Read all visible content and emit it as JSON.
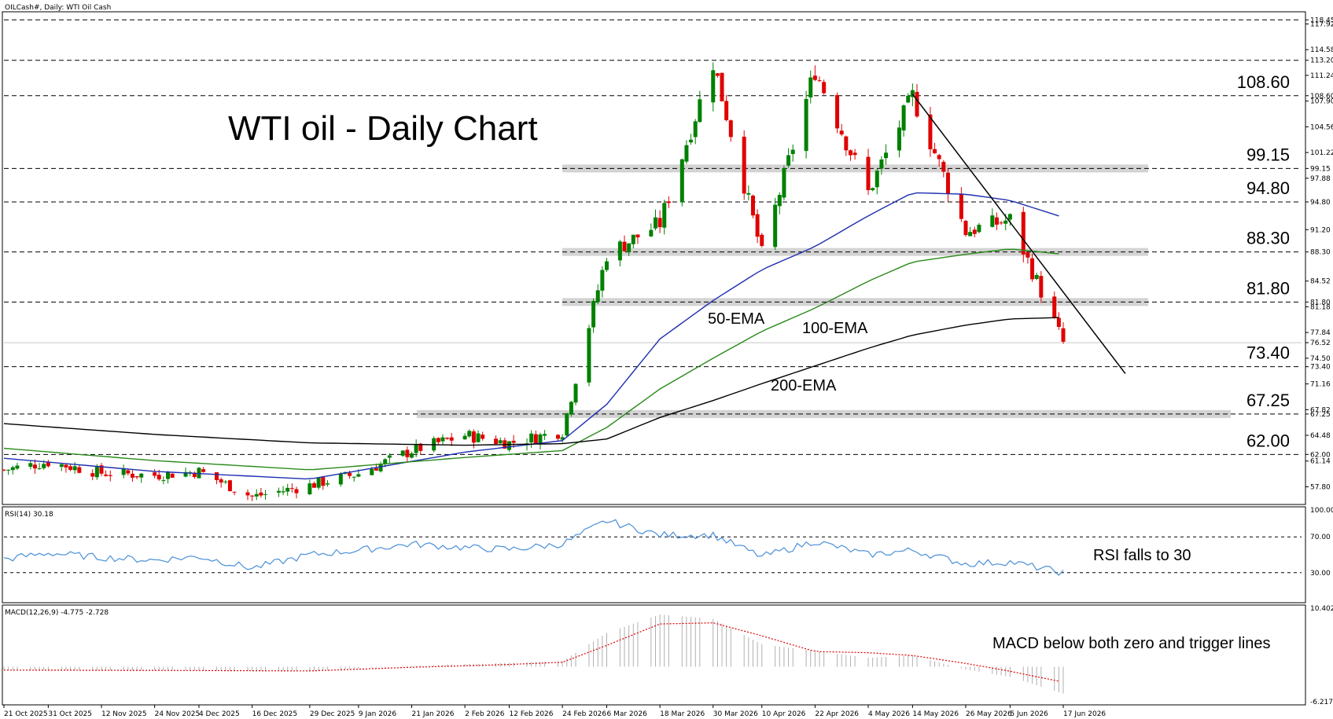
{
  "header": {
    "symbol_line": "OILCash#, Daily: WTI Oil Cash",
    "rsi_line": "RSI(14) 30.18",
    "macd_line": "MACD(12,26,9) -4.775 -2.728"
  },
  "annotations": {
    "title": "WTI oil - Daily Chart",
    "ema50": "50-EMA",
    "ema100": "100-EMA",
    "ema200": "200-EMA",
    "rsi_note": "RSI falls to 30",
    "macd_note": "MACD below both zero and trigger lines"
  },
  "colors": {
    "bull": "#008000",
    "bear": "#e00000",
    "ema50": "#1f2fb0",
    "ema100": "#2a8a1a",
    "ema200": "#000000",
    "rsi": "#4a8fd8",
    "macd_hist": "#b0b0b0",
    "macd_signal": "#e00000",
    "zone": "#d3d3d3"
  },
  "chart_data": [
    {
      "type": "candlestick",
      "title": "WTI oil - Daily Chart",
      "ylim": [
        55.5,
        119.5
      ],
      "price_ticks": [
        "118.45",
        "117.92",
        "114.58",
        "113.20",
        "111.24",
        "108.60",
        "107.90",
        "104.56",
        "101.22",
        "99.15",
        "97.88",
        "94.80",
        "91.20",
        "88.30",
        "84.52",
        "81.80",
        "81.18",
        "77.84",
        "76.52",
        "74.50",
        "73.40",
        "71.16",
        "67.82",
        "67.25",
        "64.48",
        "62.00",
        "61.14",
        "57.80"
      ],
      "x_dates": [
        "21 Oct 2025",
        "31 Oct 2025",
        "12 Nov 2025",
        "24 Nov 2025",
        "4 Dec 2025",
        "16 Dec 2025",
        "29 Dec 2025",
        "9 Jan 2026",
        "21 Jan 2026",
        "2 Feb 2026",
        "12 Feb 2026",
        "24 Feb 2026",
        "6 Mar 2026",
        "18 Mar 2026",
        "30 Mar 2026",
        "10 Apr 2026",
        "22 Apr 2026",
        "4 May 2026",
        "14 May 2026",
        "26 May 2026",
        "5 Jun 2026",
        "17 Jun 2026"
      ],
      "levels": [
        {
          "value": 108.6,
          "label": "108.60",
          "zone": false
        },
        {
          "value": 99.15,
          "label": "99.15",
          "zone": true
        },
        {
          "value": 94.8,
          "label": "94.80",
          "zone": false
        },
        {
          "value": 88.3,
          "label": "88.30",
          "zone": true
        },
        {
          "value": 81.8,
          "label": "81.80",
          "zone": true
        },
        {
          "value": 73.4,
          "label": "73.40",
          "zone": false
        },
        {
          "value": 67.25,
          "label": "67.25",
          "zone": true
        },
        {
          "value": 62.0,
          "label": "62.00",
          "zone": false
        }
      ],
      "extra_dashed_levels": [
        118.45,
        113.2
      ],
      "current_price": 76.52,
      "trendline": [
        {
          "date": "14 May 2026",
          "price": 108.8
        },
        {
          "date": "1 Jul 2026",
          "price": 72.5
        }
      ],
      "price_path": [
        {
          "date": "21 Oct 2025",
          "close": 60.0
        },
        {
          "date": "31 Oct 2025",
          "close": 61.0
        },
        {
          "date": "12 Nov 2025",
          "close": 59.6
        },
        {
          "date": "24 Nov 2025",
          "close": 59.3
        },
        {
          "date": "4 Dec 2025",
          "close": 59.8
        },
        {
          "date": "16 Dec 2025",
          "close": 56.5
        },
        {
          "date": "29 Dec 2025",
          "close": 58.0
        },
        {
          "date": "9 Jan 2026",
          "close": 59.5
        },
        {
          "date": "21 Jan 2026",
          "close": 62.5
        },
        {
          "date": "2 Feb 2026",
          "close": 64.5
        },
        {
          "date": "12 Feb 2026",
          "close": 63.5
        },
        {
          "date": "24 Feb 2026",
          "close": 65.0
        },
        {
          "date": "6 Mar 2026",
          "close": 88.0
        },
        {
          "date": "18 Mar 2026",
          "close": 92.0
        },
        {
          "date": "30 Mar 2026",
          "close": 113.0
        },
        {
          "date": "10 Apr 2026",
          "close": 88.0
        },
        {
          "date": "22 Apr 2026",
          "close": 112.0
        },
        {
          "date": "4 May 2026",
          "close": 96.0
        },
        {
          "date": "14 May 2026",
          "close": 108.5
        },
        {
          "date": "26 May 2026",
          "close": 91.0
        },
        {
          "date": "5 Jun 2026",
          "close": 92.5
        },
        {
          "date": "17 Jun 2026",
          "close": 76.5
        }
      ],
      "series": [
        {
          "name": "50-EMA",
          "points": [
            {
              "date": "21 Oct 2025",
              "value": 61.5
            },
            {
              "date": "24 Nov 2025",
              "value": 59.8
            },
            {
              "date": "29 Dec 2025",
              "value": 58.8
            },
            {
              "date": "2 Feb 2026",
              "value": 62.3
            },
            {
              "date": "24 Feb 2026",
              "value": 63.8
            },
            {
              "date": "6 Mar 2026",
              "value": 68.5
            },
            {
              "date": "18 Mar 2026",
              "value": 77.0
            },
            {
              "date": "30 Mar 2026",
              "value": 82.0
            },
            {
              "date": "10 Apr 2026",
              "value": 86.0
            },
            {
              "date": "22 Apr 2026",
              "value": 89.0
            },
            {
              "date": "4 May 2026",
              "value": 93.0
            },
            {
              "date": "14 May 2026",
              "value": 96.0
            },
            {
              "date": "26 May 2026",
              "value": 95.8
            },
            {
              "date": "5 Jun 2026",
              "value": 95.0
            },
            {
              "date": "17 Jun 2026",
              "value": 92.8
            }
          ]
        },
        {
          "name": "100-EMA",
          "points": [
            {
              "date": "21 Oct 2025",
              "value": 62.8
            },
            {
              "date": "24 Nov 2025",
              "value": 61.2
            },
            {
              "date": "29 Dec 2025",
              "value": 60.0
            },
            {
              "date": "2 Feb 2026",
              "value": 61.6
            },
            {
              "date": "24 Feb 2026",
              "value": 62.5
            },
            {
              "date": "6 Mar 2026",
              "value": 65.5
            },
            {
              "date": "18 Mar 2026",
              "value": 70.5
            },
            {
              "date": "30 Mar 2026",
              "value": 74.5
            },
            {
              "date": "10 Apr 2026",
              "value": 78.0
            },
            {
              "date": "22 Apr 2026",
              "value": 81.0
            },
            {
              "date": "4 May 2026",
              "value": 84.5
            },
            {
              "date": "14 May 2026",
              "value": 87.0
            },
            {
              "date": "26 May 2026",
              "value": 88.0
            },
            {
              "date": "5 Jun 2026",
              "value": 88.7
            },
            {
              "date": "17 Jun 2026",
              "value": 88.0
            }
          ]
        },
        {
          "name": "200-EMA",
          "points": [
            {
              "date": "21 Oct 2025",
              "value": 66.0
            },
            {
              "date": "24 Nov 2025",
              "value": 64.6
            },
            {
              "date": "29 Dec 2025",
              "value": 63.5
            },
            {
              "date": "2 Feb 2026",
              "value": 63.2
            },
            {
              "date": "24 Feb 2026",
              "value": 63.4
            },
            {
              "date": "6 Mar 2026",
              "value": 64.0
            },
            {
              "date": "18 Mar 2026",
              "value": 66.8
            },
            {
              "date": "30 Mar 2026",
              "value": 69.0
            },
            {
              "date": "10 Apr 2026",
              "value": 71.2
            },
            {
              "date": "22 Apr 2026",
              "value": 73.5
            },
            {
              "date": "4 May 2026",
              "value": 75.8
            },
            {
              "date": "14 May 2026",
              "value": 77.5
            },
            {
              "date": "26 May 2026",
              "value": 78.8
            },
            {
              "date": "5 Jun 2026",
              "value": 79.6
            },
            {
              "date": "17 Jun 2026",
              "value": 79.8
            }
          ]
        }
      ]
    },
    {
      "type": "line",
      "title": "RSI(14) 30.18",
      "ylim": [
        0,
        100
      ],
      "ticks": [
        30,
        70,
        100
      ],
      "guide_lines": [
        30,
        70
      ],
      "series": [
        {
          "name": "RSI(14)",
          "points": [
            {
              "date": "21 Oct 2025",
              "value": 45
            },
            {
              "date": "31 Oct 2025",
              "value": 52
            },
            {
              "date": "12 Nov 2025",
              "value": 47
            },
            {
              "date": "24 Nov 2025",
              "value": 44
            },
            {
              "date": "4 Dec 2025",
              "value": 48
            },
            {
              "date": "16 Dec 2025",
              "value": 35
            },
            {
              "date": "29 Dec 2025",
              "value": 50
            },
            {
              "date": "9 Jan 2026",
              "value": 55
            },
            {
              "date": "21 Jan 2026",
              "value": 62
            },
            {
              "date": "2 Feb 2026",
              "value": 58
            },
            {
              "date": "12 Feb 2026",
              "value": 56
            },
            {
              "date": "24 Feb 2026",
              "value": 62
            },
            {
              "date": "6 Mar 2026",
              "value": 88
            },
            {
              "date": "18 Mar 2026",
              "value": 72
            },
            {
              "date": "30 Mar 2026",
              "value": 72
            },
            {
              "date": "10 Apr 2026",
              "value": 48
            },
            {
              "date": "22 Apr 2026",
              "value": 65
            },
            {
              "date": "4 May 2026",
              "value": 50
            },
            {
              "date": "14 May 2026",
              "value": 55
            },
            {
              "date": "26 May 2026",
              "value": 40
            },
            {
              "date": "5 Jun 2026",
              "value": 42
            },
            {
              "date": "17 Jun 2026",
              "value": 30
            }
          ]
        }
      ]
    },
    {
      "type": "bar",
      "title": "MACD(12,26,9) -4.775 -2.728",
      "ylim": [
        -6.217,
        10.402
      ],
      "ticks": [
        "10.402",
        "-6.217"
      ],
      "series": [
        {
          "name": "MACD",
          "points": [
            {
              "date": "21 Oct 2025",
              "value": -0.6
            },
            {
              "date": "24 Nov 2025",
              "value": -0.7
            },
            {
              "date": "29 Dec 2025",
              "value": -0.8
            },
            {
              "date": "21 Jan 2026",
              "value": 0.2
            },
            {
              "date": "12 Feb 2026",
              "value": 0.7
            },
            {
              "date": "24 Feb 2026",
              "value": 1.0
            },
            {
              "date": "6 Mar 2026",
              "value": 6.0
            },
            {
              "date": "18 Mar 2026",
              "value": 9.3
            },
            {
              "date": "30 Mar 2026",
              "value": 8.5
            },
            {
              "date": "10 Apr 2026",
              "value": 4.0
            },
            {
              "date": "22 Apr 2026",
              "value": 2.8
            },
            {
              "date": "4 May 2026",
              "value": 1.6
            },
            {
              "date": "14 May 2026",
              "value": 2.0
            },
            {
              "date": "26 May 2026",
              "value": -0.5
            },
            {
              "date": "5 Jun 2026",
              "value": -1.8
            },
            {
              "date": "17 Jun 2026",
              "value": -4.775
            }
          ]
        },
        {
          "name": "Signal",
          "points": [
            {
              "date": "21 Oct 2025",
              "value": -0.6
            },
            {
              "date": "24 Nov 2025",
              "value": -0.65
            },
            {
              "date": "29 Dec 2025",
              "value": -0.75
            },
            {
              "date": "21 Jan 2026",
              "value": -0.1
            },
            {
              "date": "12 Feb 2026",
              "value": 0.4
            },
            {
              "date": "24 Feb 2026",
              "value": 0.8
            },
            {
              "date": "6 Mar 2026",
              "value": 3.8
            },
            {
              "date": "18 Mar 2026",
              "value": 7.6
            },
            {
              "date": "30 Mar 2026",
              "value": 7.8
            },
            {
              "date": "10 Apr 2026",
              "value": 5.5
            },
            {
              "date": "22 Apr 2026",
              "value": 2.7
            },
            {
              "date": "4 May 2026",
              "value": 2.5
            },
            {
              "date": "14 May 2026",
              "value": 2.0
            },
            {
              "date": "26 May 2026",
              "value": 0.6
            },
            {
              "date": "5 Jun 2026",
              "value": -0.8
            },
            {
              "date": "17 Jun 2026",
              "value": -2.728
            }
          ]
        }
      ]
    }
  ]
}
